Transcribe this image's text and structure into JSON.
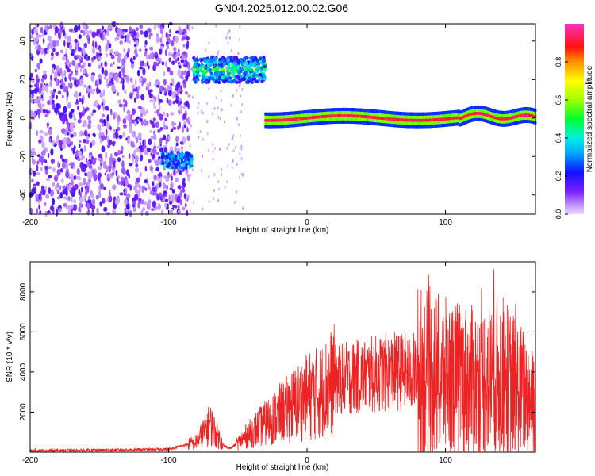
{
  "title": "GN04.2025.012.00.02.G06",
  "chart_data": [
    {
      "type": "heatmap",
      "xlabel": "Height of straight line (km)",
      "ylabel": "Frequency (Hz)",
      "xlim": [
        -200,
        165
      ],
      "ylim": [
        -50,
        49
      ],
      "xticks": [
        "-200",
        "-100",
        "0",
        "100"
      ],
      "xtick_values": [
        -200,
        -100,
        0,
        100
      ],
      "yticks": [
        "-40",
        "-20",
        "0",
        "20",
        "40"
      ],
      "ytick_values": [
        -40,
        -20,
        0,
        20,
        40
      ],
      "colorbar": {
        "label": "Normalized spectral amplitude",
        "ticks": [
          "0.0",
          "0.2",
          "0.4",
          "0.6",
          "0.8"
        ],
        "tick_values": [
          0.0,
          0.2,
          0.4,
          0.6,
          0.8
        ],
        "range": [
          0,
          1
        ],
        "colormap": "rainbow (magenta-blue-cyan-green-yellow-red-magenta)"
      },
      "features": [
        {
          "x_range": [
            -200,
            -85
          ],
          "freq_range": [
            -50,
            49
          ],
          "amplitude": "0.05-0.2",
          "kind": "scattered noise"
        },
        {
          "x_range": [
            -105,
            -83
          ],
          "freq_center": -22,
          "amplitude": "0.2-0.4",
          "kind": "band"
        },
        {
          "x_range": [
            -82,
            -30
          ],
          "freq_center": 25,
          "amplitude": "0.3-0.6",
          "kind": "band"
        },
        {
          "x_range": [
            -30,
            165
          ],
          "freq_center": 0,
          "amplitude": "0.6-1.0",
          "kind": "carrier line"
        }
      ]
    },
    {
      "type": "line",
      "xlabel": "Height of straight line (km)",
      "ylabel": "SNR (10 * v/v)",
      "xlim": [
        -200,
        165
      ],
      "ylim": [
        0,
        9500
      ],
      "xticks": [
        "-200",
        "-100",
        "0",
        "100"
      ],
      "xtick_values": [
        -200,
        -100,
        0,
        100
      ],
      "yticks": [
        "2000",
        "4000",
        "6000",
        "8000"
      ],
      "ytick_values": [
        2000,
        4000,
        6000,
        8000
      ],
      "series_color": "#ee2222",
      "x": [
        -200,
        -150,
        -100,
        -80,
        -70,
        -60,
        -55,
        -40,
        -20,
        0,
        10,
        20,
        40,
        60,
        80,
        100,
        120,
        140,
        160,
        165
      ],
      "values": [
        80,
        100,
        150,
        500,
        1400,
        300,
        200,
        1000,
        1900,
        2800,
        3000,
        3600,
        3800,
        4000,
        4000,
        3700,
        3500,
        3800,
        2800,
        3000
      ]
    }
  ]
}
